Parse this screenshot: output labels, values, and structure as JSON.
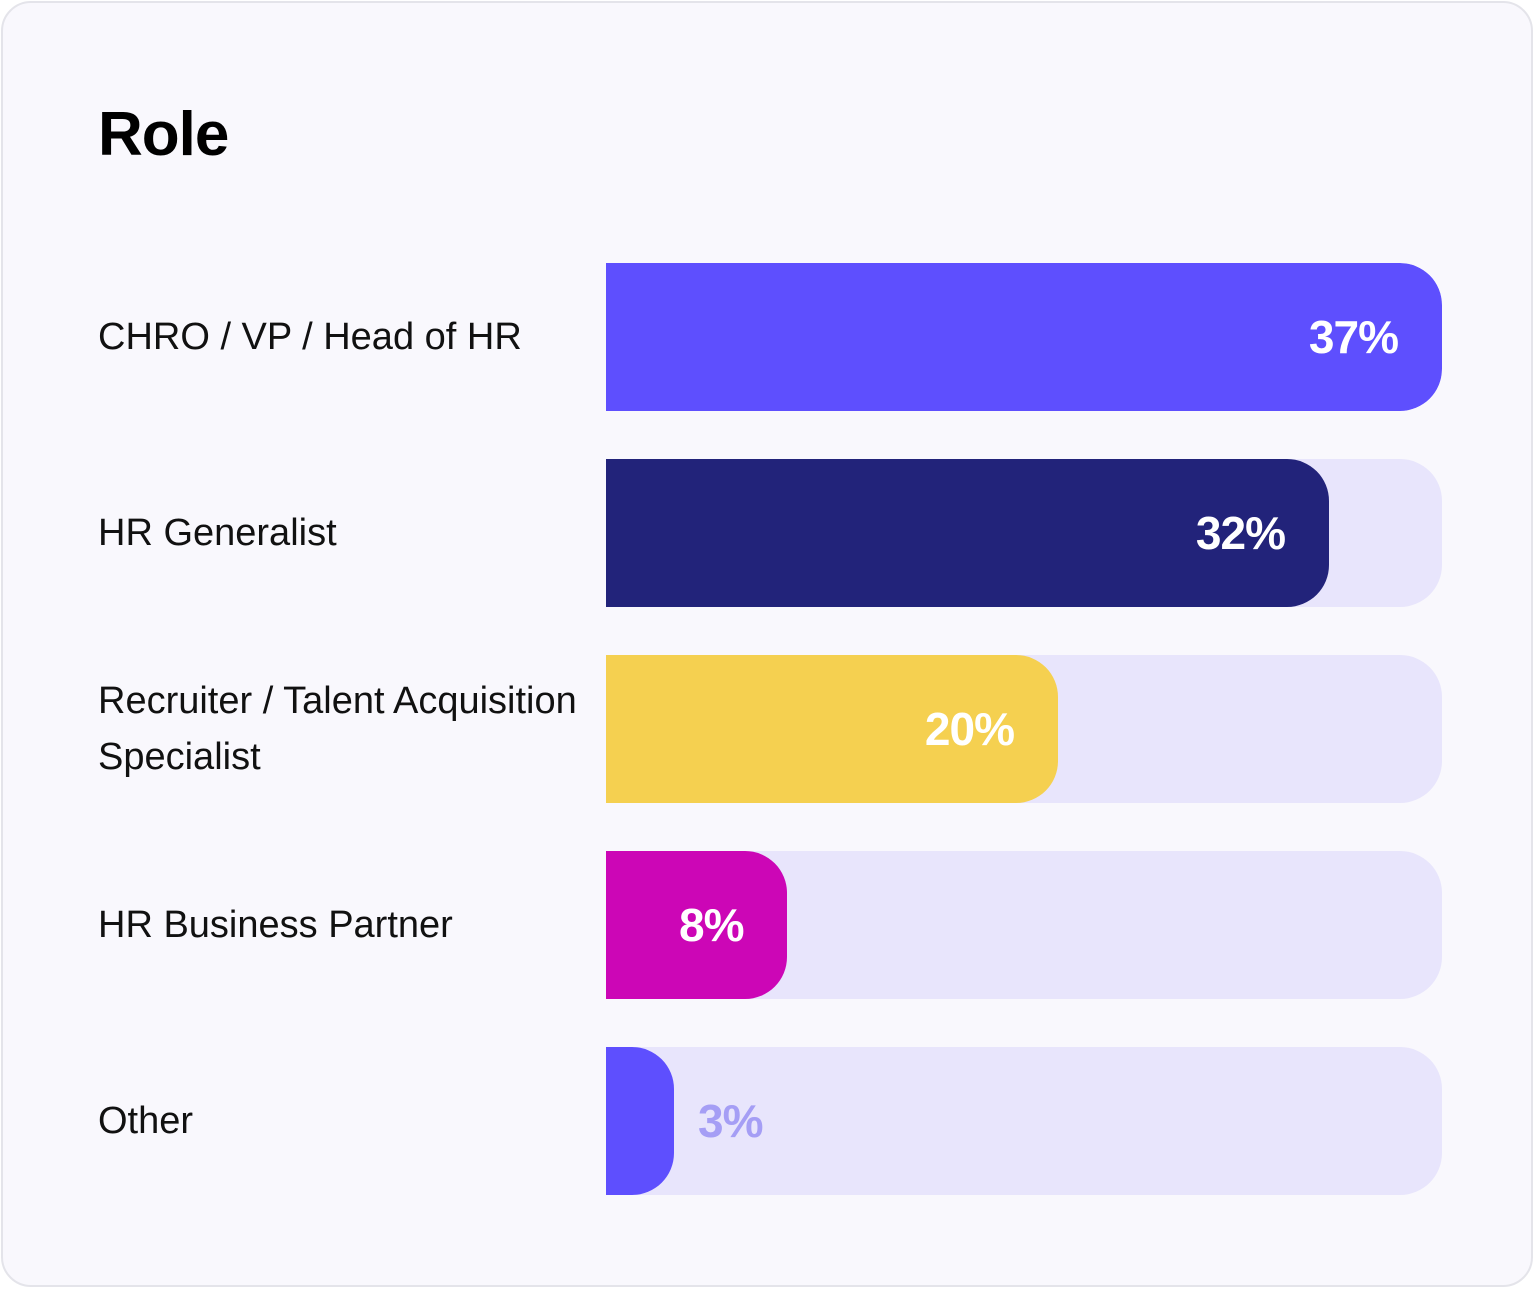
{
  "chart_data": {
    "type": "bar",
    "orientation": "horizontal",
    "title": "Role",
    "categories": [
      "CHRO / VP / Head of HR",
      "HR Generalist",
      "Recruiter / Talent Acquisition Specialist",
      "HR Business Partner",
      "Other"
    ],
    "values": [
      37,
      32,
      20,
      8,
      3
    ],
    "value_labels": [
      "37%",
      "32%",
      "20%",
      "8%",
      "3%"
    ],
    "xlim": [
      0,
      37
    ],
    "colors": [
      "#5e4ffe",
      "#22237a",
      "#f5d050",
      "#cc06b6",
      "#5e4ffe"
    ],
    "label_colors": [
      "#ffffff",
      "#ffffff",
      "#ffffff",
      "#ffffff",
      "#a59ef5"
    ],
    "track_color": "#e8e5fc",
    "grid": false
  }
}
